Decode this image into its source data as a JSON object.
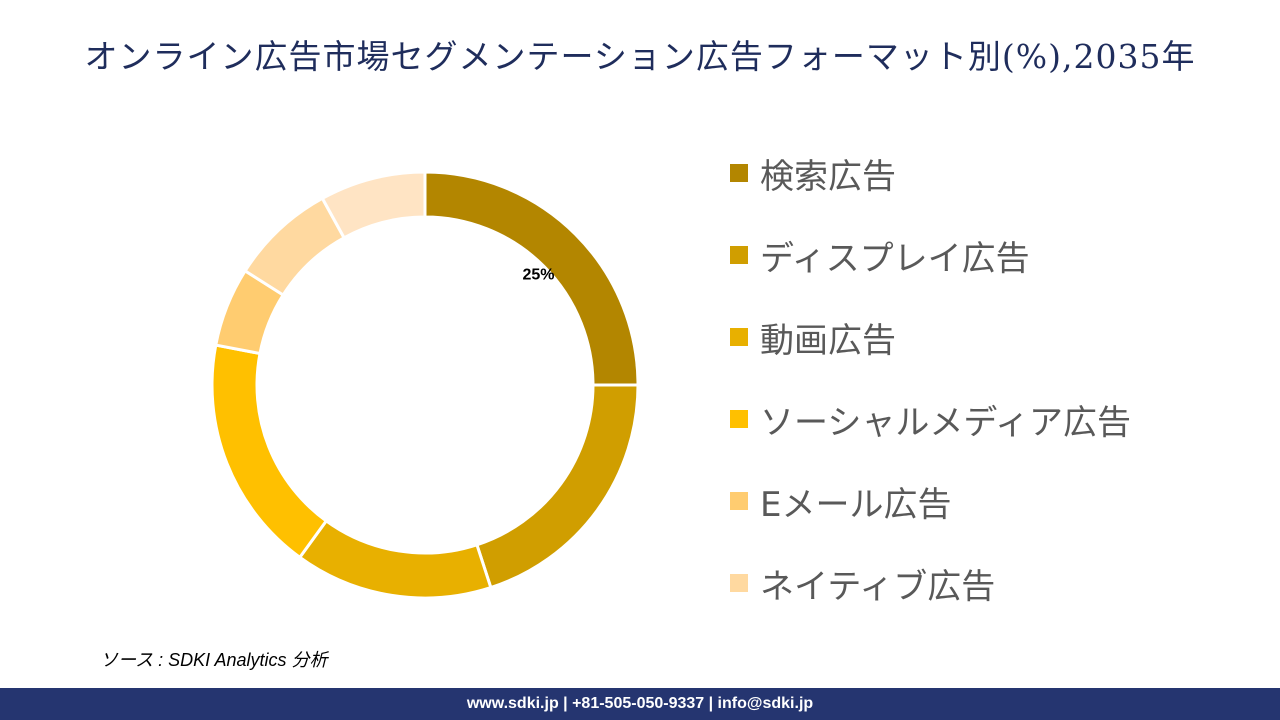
{
  "title": "オンライン広告市場セグメンテーション広告フォーマット別(%),2035年",
  "chart_data": {
    "type": "pie",
    "donut": true,
    "title": "オンライン広告市場セグメンテーション広告フォーマット別(%),2035年",
    "categories": [
      "検索広告",
      "ディスプレイ広告",
      "動画広告",
      "ソーシャルメディア広告",
      "Eメール広告",
      "ネイティブ広告",
      ""
    ],
    "values": [
      25,
      20,
      15,
      18,
      6,
      8,
      8
    ],
    "colors": [
      "#B38600",
      "#D09E00",
      "#E8B000",
      "#FFC000",
      "#FFCC70",
      "#FFD9A0",
      "#FFE4C4"
    ],
    "data_labels": [
      "25%",
      "",
      "",
      "",
      "",
      "",
      ""
    ],
    "legend_position": "right"
  },
  "source": "ソース : SDKI Analytics 分析",
  "footer": "www.sdki.jp | +81-505-050-9337 | info@sdki.jp"
}
